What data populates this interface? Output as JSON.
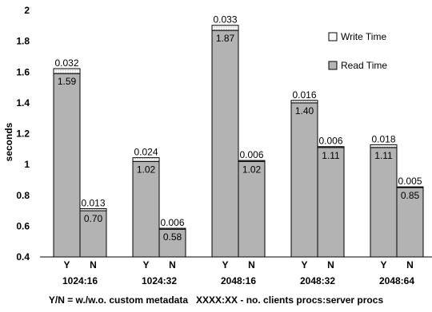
{
  "chart_data": {
    "type": "bar",
    "stacked": true,
    "ylabel": "seconds",
    "ylim": [
      0.4,
      2
    ],
    "yticks": [
      "0.4",
      "0.6",
      "0.8",
      "1",
      "1.2",
      "1.4",
      "1.6",
      "1.8",
      "2"
    ],
    "grid": false,
    "legend_position": "top-right",
    "groups": [
      "1024:16",
      "1024:32",
      "2048:16",
      "2048:32",
      "2048:64"
    ],
    "bar_labels": [
      "Y",
      "N"
    ],
    "series": [
      {
        "name": "Read Time",
        "color": "#b3b3b3",
        "values": [
          [
            1.59,
            0.7
          ],
          [
            1.02,
            0.58
          ],
          [
            1.87,
            1.02
          ],
          [
            1.4,
            1.11
          ],
          [
            1.11,
            0.85
          ]
        ],
        "labels": [
          [
            "1.59",
            "0.70"
          ],
          [
            "1.02",
            "0.58"
          ],
          [
            "1.87",
            "1.02"
          ],
          [
            "1.40",
            "1.11"
          ],
          [
            "1.11",
            "0.85"
          ]
        ]
      },
      {
        "name": "Write Time",
        "color": "#ffffff",
        "pattern": "dotted",
        "values": [
          [
            0.032,
            0.013
          ],
          [
            0.024,
            0.006
          ],
          [
            0.033,
            0.006
          ],
          [
            0.016,
            0.006
          ],
          [
            0.018,
            0.005
          ]
        ],
        "labels": [
          [
            "0.032",
            "0.013"
          ],
          [
            "0.024",
            "0.006"
          ],
          [
            "0.033",
            "0.006"
          ],
          [
            "0.016",
            "0.006"
          ],
          [
            "0.018",
            "0.005"
          ]
        ]
      }
    ],
    "caption": "Y/N = w./w.o. custom metadata   XXXX:XX - no. clients procs:server procs"
  }
}
